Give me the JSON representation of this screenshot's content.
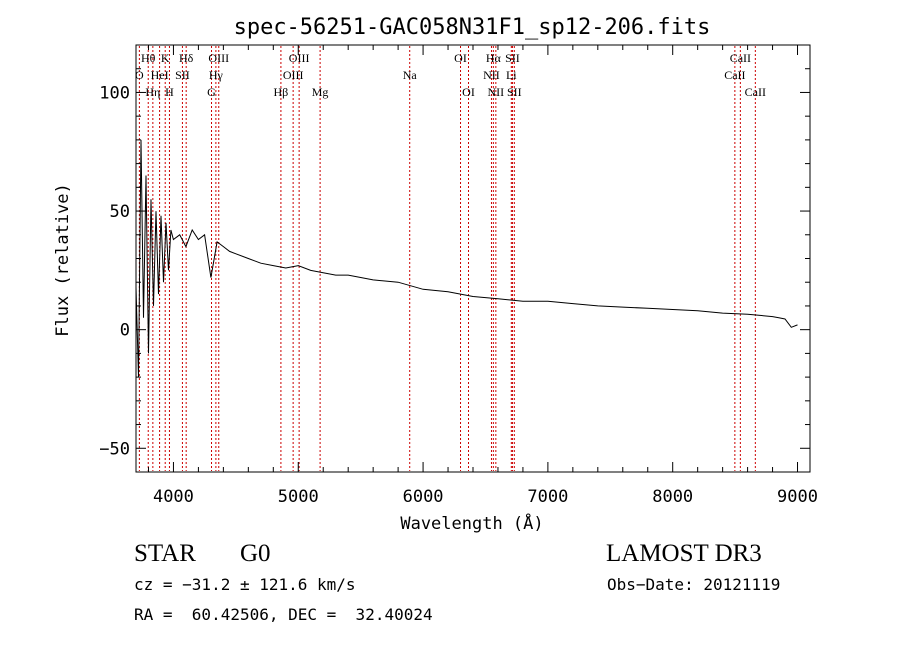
{
  "chart_data": {
    "type": "line",
    "title": "spec-56251-GAC058N31F1_sp12-206.fits",
    "xlabel": "Wavelength (Å)",
    "ylabel": "Flux (relative)",
    "xlim": [
      3700,
      9100
    ],
    "ylim": [
      -60,
      120
    ],
    "xticks": [
      4000,
      5000,
      6000,
      7000,
      8000,
      9000
    ],
    "yticks": [
      -50,
      0,
      50,
      100
    ],
    "ytick_labels": [
      "−50",
      "0",
      "50",
      "100"
    ],
    "line_color": "#000000",
    "marker_color": "#cc0000",
    "series": [
      {
        "name": "spectrum",
        "x": [
          3700,
          3720,
          3740,
          3760,
          3780,
          3800,
          3820,
          3840,
          3860,
          3880,
          3900,
          3920,
          3940,
          3960,
          3980,
          4000,
          4050,
          4100,
          4150,
          4200,
          4250,
          4300,
          4350,
          4400,
          4450,
          4500,
          4600,
          4700,
          4800,
          4900,
          5000,
          5100,
          5200,
          5300,
          5400,
          5500,
          5600,
          5800,
          6000,
          6200,
          6400,
          6600,
          6800,
          7000,
          7200,
          7400,
          7600,
          7800,
          8000,
          8200,
          8400,
          8600,
          8700,
          8800,
          8850,
          8900,
          8950,
          9000
        ],
        "y": [
          18,
          -20,
          80,
          5,
          65,
          -10,
          55,
          10,
          50,
          15,
          48,
          20,
          45,
          25,
          42,
          38,
          40,
          35,
          42,
          38,
          40,
          22,
          37,
          35,
          33,
          32,
          30,
          28,
          27,
          26,
          27,
          25,
          24,
          23,
          23,
          22,
          21,
          20,
          17,
          16,
          14,
          13,
          12,
          12,
          11,
          10,
          9.5,
          9,
          8.5,
          8,
          7,
          6.5,
          6,
          5.5,
          5,
          4.5,
          1,
          2
        ]
      }
    ],
    "line_markers": [
      {
        "label": "Hθ",
        "wave": 3798,
        "row": 1
      },
      {
        "label": "O",
        "wave": 3727,
        "row": 2
      },
      {
        "label": "Hη",
        "wave": 3835,
        "row": 3
      },
      {
        "label": "HeI",
        "wave": 3889,
        "row": 2
      },
      {
        "label": "K",
        "wave": 3934,
        "row": 1
      },
      {
        "label": "H",
        "wave": 3968,
        "row": 3
      },
      {
        "label": "SII",
        "wave": 4072,
        "row": 2
      },
      {
        "label": "Hδ",
        "wave": 4102,
        "row": 1
      },
      {
        "label": "G",
        "wave": 4305,
        "row": 3
      },
      {
        "label": "Hγ",
        "wave": 4340,
        "row": 2
      },
      {
        "label": "OIII",
        "wave": 4363,
        "row": 1
      },
      {
        "label": "Hβ",
        "wave": 4861,
        "row": 3
      },
      {
        "label": "OIII",
        "wave": 4959,
        "row": 2
      },
      {
        "label": "OIII",
        "wave": 5007,
        "row": 1
      },
      {
        "label": "Mg",
        "wave": 5175,
        "row": 3
      },
      {
        "label": "Na",
        "wave": 5893,
        "row": 2
      },
      {
        "label": "OI",
        "wave": 6300,
        "row": 1
      },
      {
        "label": "OI",
        "wave": 6364,
        "row": 3
      },
      {
        "label": "NII",
        "wave": 6548,
        "row": 2
      },
      {
        "label": "Hα",
        "wave": 6563,
        "row": 1
      },
      {
        "label": "NII",
        "wave": 6583,
        "row": 3
      },
      {
        "label": "Li",
        "wave": 6707,
        "row": 2
      },
      {
        "label": "SII",
        "wave": 6716,
        "row": 1
      },
      {
        "label": "SII",
        "wave": 6731,
        "row": 3
      },
      {
        "label": "CaII",
        "wave": 8498,
        "row": 2
      },
      {
        "label": "CaII",
        "wave": 8542,
        "row": 1
      },
      {
        "label": "CaII",
        "wave": 8662,
        "row": 3
      }
    ]
  },
  "info": {
    "object_class": "STAR",
    "subclass": "G0",
    "survey": "LAMOST DR3",
    "cz": "cz = −31.2 ± 121.6 km/s",
    "obs_date": "Obs−Date: 20121119",
    "coords": "RA =  60.42506, DEC =  32.40024"
  }
}
